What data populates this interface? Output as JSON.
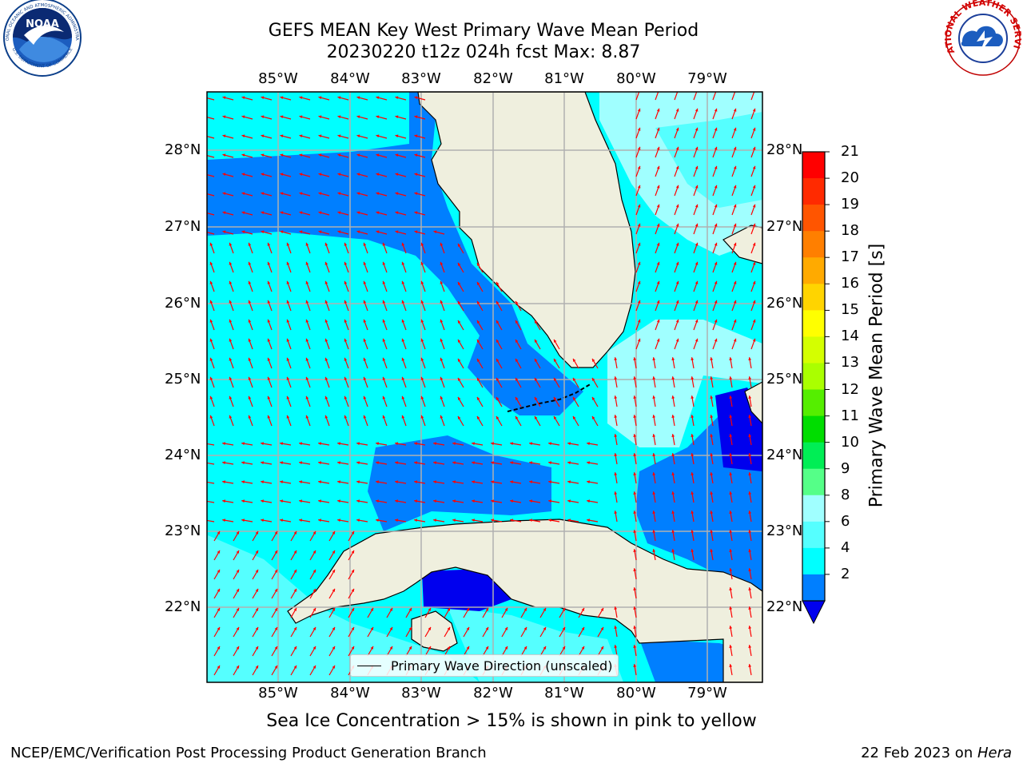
{
  "title": {
    "line1": "GEFS MEAN Key West Primary Wave Mean Period",
    "line2": "20230220 t12z 024h fcst   Max: 8.87"
  },
  "map": {
    "lon_labels": [
      "85°W",
      "84°W",
      "83°W",
      "82°W",
      "81°W",
      "80°W",
      "79°W"
    ],
    "lat_labels": [
      "28°N",
      "27°N",
      "26°N",
      "25°N",
      "24°N",
      "23°N",
      "22°N"
    ],
    "legend_label": "Primary Wave Direction (unscaled)",
    "colors": {
      "land": "#efefde",
      "coast": "#000000",
      "grid": "#b0b0b0",
      "arrow": "#ff0000",
      "bin_2_4": "#007fff",
      "bin_4_6": "#00ffff",
      "bin_6_8": "#55ffff",
      "bin_8_9": "#a0ffff",
      "below_2": "#0000ee"
    }
  },
  "colorbar": {
    "label": "Primary Wave Mean Period [s]",
    "ticks": [
      "21",
      "20",
      "19",
      "18",
      "17",
      "16",
      "15",
      "14",
      "13",
      "12",
      "11",
      "10",
      "9",
      "8",
      "6",
      "4",
      "2"
    ],
    "colors": [
      "#ff0000",
      "#ff2a00",
      "#ff5500",
      "#ff7f00",
      "#ffaa00",
      "#ffd400",
      "#ffff00",
      "#d4ff00",
      "#aaff00",
      "#55ee00",
      "#00dd00",
      "#00ee55",
      "#55ff88",
      "#a0ffff",
      "#55ffff",
      "#00ffff",
      "#007fff"
    ],
    "extend_color": "#0000ee"
  },
  "logos": {
    "noaa": "NOAA",
    "nws_arc": "NATIONAL WEATHER SERVICE",
    "noaa_arc_top": "NATIONAL OCEANIC AND ATMOSPHERIC ADMINISTRATION",
    "noaa_arc_bottom": "U.S. DEPARTMENT OF COMMERCE"
  },
  "annotation": "Sea Ice Concentration > 15% is shown in pink to yellow",
  "footer": {
    "left": "NCEP/EMC/Verification Post Processing Product Generation Branch",
    "right_prefix": "22 Feb 2023 on ",
    "right_host": "Hera"
  }
}
